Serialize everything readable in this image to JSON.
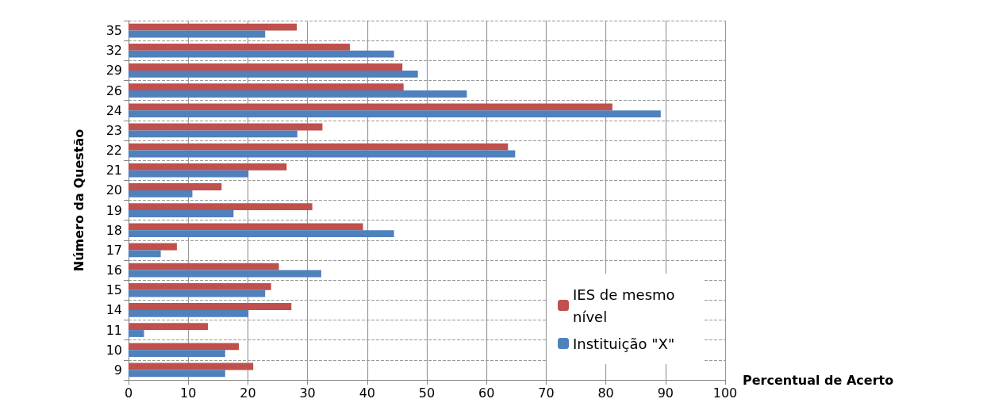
{
  "chart_data": {
    "type": "bar",
    "orientation": "horizontal",
    "xlabel": "Percentual de Acerto",
    "ylabel": "Número da Questão",
    "categories": [
      "35",
      "32",
      "29",
      "26",
      "24",
      "23",
      "22",
      "21",
      "20",
      "19",
      "18",
      "17",
      "16",
      "15",
      "14",
      "11",
      "10",
      "9"
    ],
    "series": [
      {
        "name": "IES de mesmo nível",
        "color": "#c0504d",
        "values": [
          28.2,
          37.1,
          45.9,
          46.1,
          81.1,
          32.5,
          63.6,
          26.5,
          15.6,
          30.8,
          39.3,
          8.1,
          25.2,
          23.9,
          27.3,
          13.3,
          18.5,
          20.9
        ]
      },
      {
        "name": "Instituição \"X\"",
        "color": "#4f81bd",
        "values": [
          22.9,
          44.5,
          48.5,
          56.7,
          89.2,
          28.3,
          64.8,
          20.1,
          10.7,
          17.6,
          44.5,
          5.4,
          32.3,
          22.9,
          20.1,
          2.6,
          16.2,
          16.2
        ]
      }
    ],
    "xlim": [
      0,
      100
    ],
    "xticks": [
      0,
      10,
      20,
      30,
      40,
      50,
      60,
      70,
      80,
      90,
      100
    ],
    "grid": true,
    "legend": "bottom right"
  }
}
